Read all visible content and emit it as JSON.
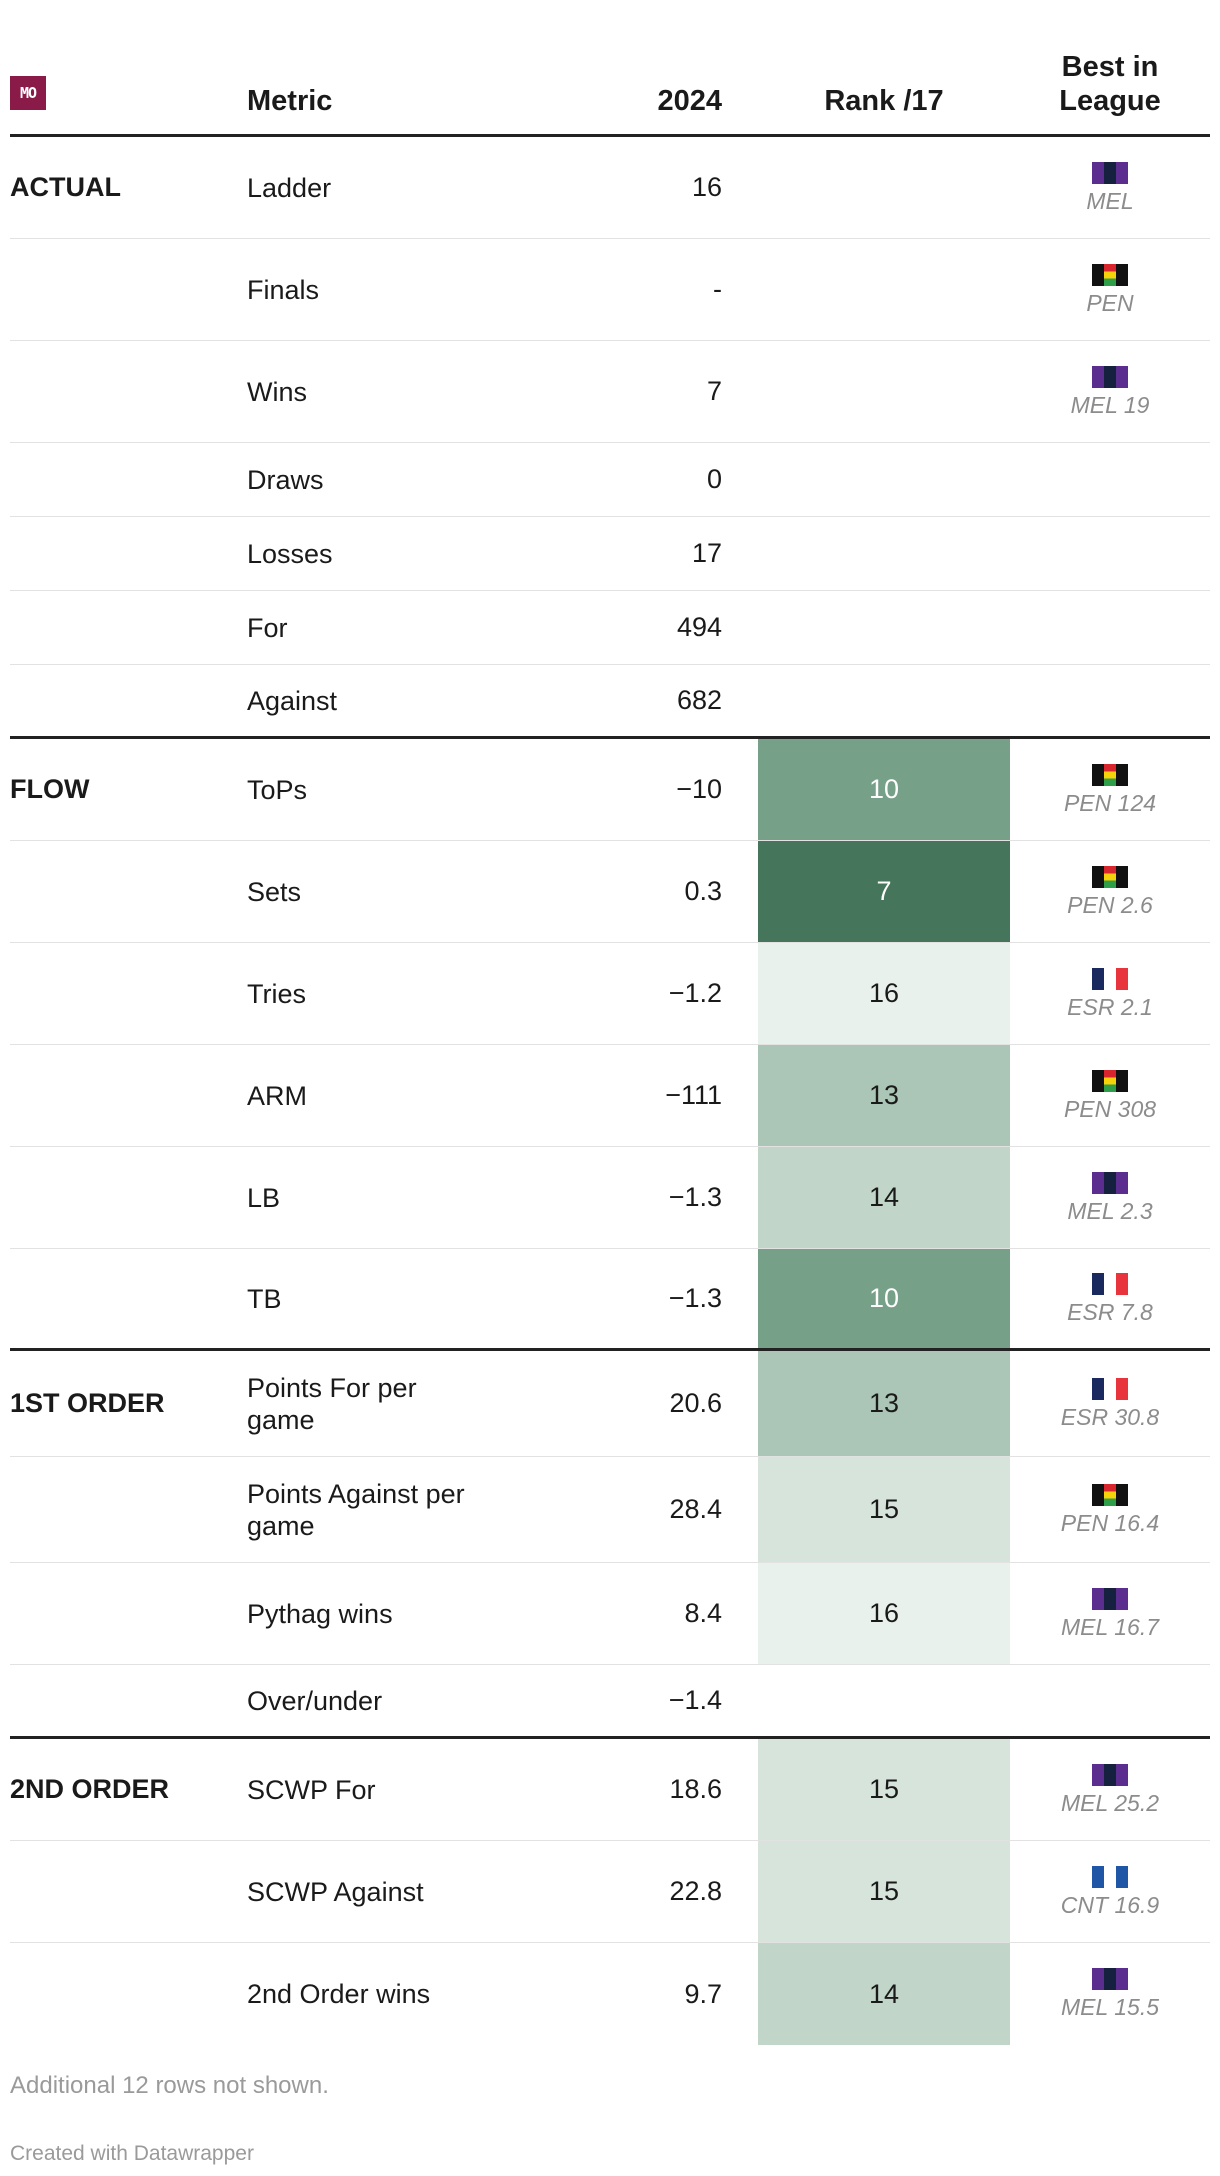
{
  "header": {
    "logo": "MO",
    "col_metric": "Metric",
    "col_year": "2024",
    "col_rank": "Rank /17",
    "col_best": "Best in League"
  },
  "colors": {
    "rank_7": "#45755b",
    "rank_10": "#77a088",
    "rank_13": "#abc6b6",
    "rank_14": "#c1d6c9",
    "rank_15": "#d6e4db",
    "rank_16": "#e9f1ec"
  },
  "rows": [
    {
      "group": "ACTUAL",
      "metric": "Ladder",
      "value": "16",
      "rank": "",
      "best_team": "MEL",
      "best_value": "",
      "flag": "mel"
    },
    {
      "group": "",
      "metric": "Finals",
      "value": "-",
      "rank": "",
      "best_team": "PEN",
      "best_value": "",
      "flag": "pen"
    },
    {
      "group": "",
      "metric": "Wins",
      "value": "7",
      "rank": "",
      "best_team": "MEL",
      "best_value": "19",
      "flag": "mel"
    },
    {
      "group": "",
      "metric": "Draws",
      "value": "0",
      "rank": "",
      "best_team": "",
      "best_value": "",
      "flag": ""
    },
    {
      "group": "",
      "metric": "Losses",
      "value": "17",
      "rank": "",
      "best_team": "",
      "best_value": "",
      "flag": ""
    },
    {
      "group": "",
      "metric": "For",
      "value": "494",
      "rank": "",
      "best_team": "",
      "best_value": "",
      "flag": ""
    },
    {
      "group": "",
      "metric": "Against",
      "value": "682",
      "rank": "",
      "best_team": "",
      "best_value": "",
      "flag": ""
    },
    {
      "group": "FLOW",
      "metric": "ToPs",
      "value": "−10",
      "rank": "10",
      "best_team": "PEN",
      "best_value": "124",
      "flag": "pen"
    },
    {
      "group": "",
      "metric": "Sets",
      "value": "0.3",
      "rank": "7",
      "best_team": "PEN",
      "best_value": "2.6",
      "flag": "pen"
    },
    {
      "group": "",
      "metric": "Tries",
      "value": "−1.2",
      "rank": "16",
      "best_team": "ESR",
      "best_value": "2.1",
      "flag": "esr"
    },
    {
      "group": "",
      "metric": "ARM",
      "value": "−111",
      "rank": "13",
      "best_team": "PEN",
      "best_value": "308",
      "flag": "pen"
    },
    {
      "group": "",
      "metric": "LB",
      "value": "−1.3",
      "rank": "14",
      "best_team": "MEL",
      "best_value": "2.3",
      "flag": "mel"
    },
    {
      "group": "",
      "metric": "TB",
      "value": "−1.3",
      "rank": "10",
      "best_team": "ESR",
      "best_value": "7.8",
      "flag": "esr"
    },
    {
      "group": "1ST ORDER",
      "metric": "Points For per game",
      "value": "20.6",
      "rank": "13",
      "best_team": "ESR",
      "best_value": "30.8",
      "flag": "esr"
    },
    {
      "group": "",
      "metric": "Points Against per game",
      "value": "28.4",
      "rank": "15",
      "best_team": "PEN",
      "best_value": "16.4",
      "flag": "pen"
    },
    {
      "group": "",
      "metric": "Pythag wins",
      "value": "8.4",
      "rank": "16",
      "best_team": "MEL",
      "best_value": "16.7",
      "flag": "mel"
    },
    {
      "group": "",
      "metric": "Over/under",
      "value": "−1.4",
      "rank": "",
      "best_team": "",
      "best_value": "",
      "flag": ""
    },
    {
      "group": "2ND ORDER",
      "metric": "SCWP For",
      "value": "18.6",
      "rank": "15",
      "best_team": "MEL",
      "best_value": "25.2",
      "flag": "mel"
    },
    {
      "group": "",
      "metric": "SCWP Against",
      "value": "22.8",
      "rank": "15",
      "best_team": "CNT",
      "best_value": "16.9",
      "flag": "cnt"
    },
    {
      "group": "",
      "metric": "2nd Order wins",
      "value": "9.7",
      "rank": "14",
      "best_team": "MEL",
      "best_value": "15.5",
      "flag": "mel"
    }
  ],
  "footer": {
    "rows_note": "Additional 12 rows not shown.",
    "credit": "Created with Datawrapper"
  }
}
